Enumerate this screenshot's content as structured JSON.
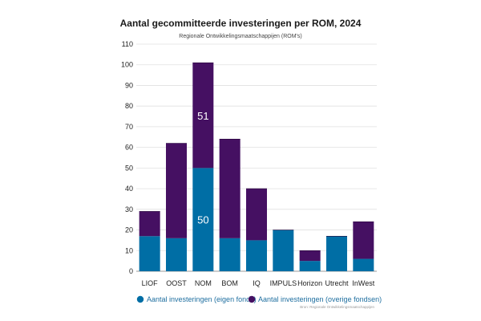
{
  "chart_data": {
    "type": "bar",
    "stacked": true,
    "title": "Aantal gecommitteerde investeringen per ROM, 2024",
    "subtitle": "Regionale Ontwikkelingsmaatschappijen (ROM's)",
    "categories": [
      "LIOF",
      "OOST",
      "NOM",
      "BOM",
      "IQ",
      "IMPULS",
      "Horizon",
      "Utrecht",
      "InWest"
    ],
    "series": [
      {
        "name": "Aantal investeringen (eigen fonds)",
        "color": "#006ea5",
        "values": [
          17,
          16,
          50,
          16,
          15,
          20,
          5,
          17,
          6
        ]
      },
      {
        "name": "Aantal investeringen (overige fondsen)",
        "color": "#451062",
        "values": [
          12,
          46,
          51,
          48,
          25,
          0,
          5,
          0,
          18
        ]
      }
    ],
    "data_labels": [
      {
        "category": "NOM",
        "series": "Aantal investeringen (eigen fonds)",
        "text": "50"
      },
      {
        "category": "NOM",
        "series": "Aantal investeringen (overige fondsen)",
        "text": "51"
      }
    ],
    "ylim": [
      0,
      110
    ],
    "yticks": [
      0,
      10,
      20,
      30,
      40,
      50,
      60,
      70,
      80,
      90,
      100,
      110
    ],
    "grid": true,
    "legend_position": "bottom",
    "source": "Bron: Regionale Ontwikkelingsmaatschappijen",
    "xlabel": "",
    "ylabel": ""
  }
}
